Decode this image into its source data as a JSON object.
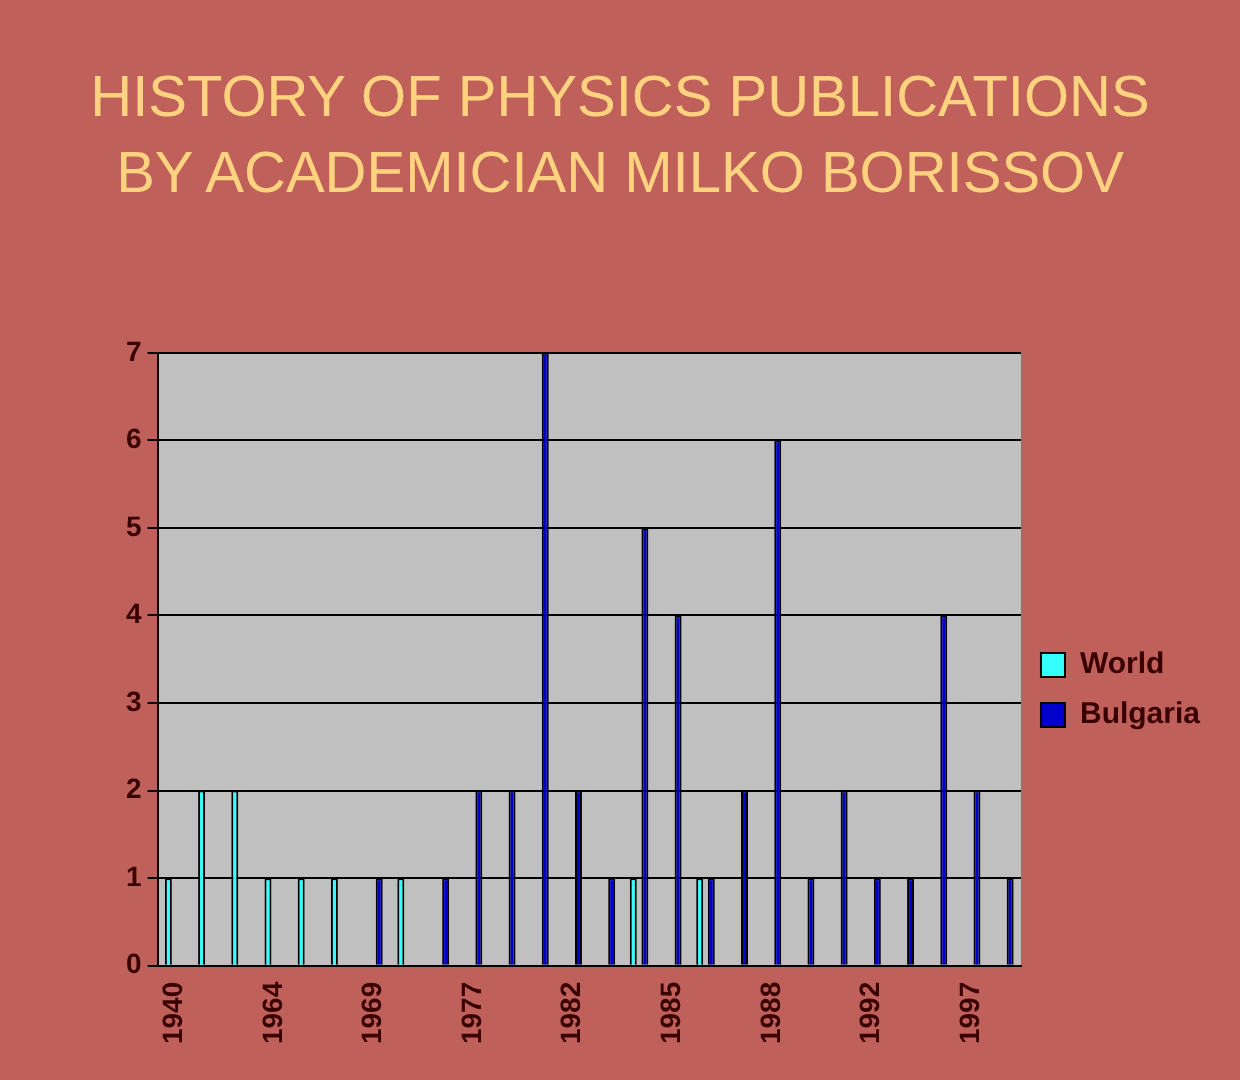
{
  "chart_data": {
    "type": "bar",
    "title": "HISTORY OF PHYSICS PUBLICATIONS BY ACADEMICIAN MILKO BORISSOV",
    "categories": [
      "1940",
      null,
      null,
      "1964",
      null,
      null,
      "1969",
      null,
      null,
      "1977",
      null,
      null,
      "1982",
      null,
      null,
      "1985",
      null,
      null,
      "1988",
      null,
      null,
      "1992",
      null,
      null,
      "1997",
      null
    ],
    "series": [
      {
        "name": "World",
        "color": "#33ffff",
        "values": [
          1,
          2,
          2,
          1,
          1,
          1,
          0,
          1,
          0,
          0,
          0,
          0,
          0,
          0,
          1,
          0,
          1,
          0,
          0,
          0,
          0,
          0,
          0,
          0,
          0,
          0
        ]
      },
      {
        "name": "Bulgaria",
        "color": "#0000cc",
        "values": [
          0,
          0,
          0,
          0,
          0,
          0,
          1,
          0,
          1,
          2,
          2,
          7,
          2,
          1,
          5,
          4,
          1,
          2,
          6,
          1,
          2,
          1,
          1,
          4,
          2,
          1
        ]
      }
    ],
    "ylim": [
      0,
      7
    ],
    "yticks": [
      0,
      1,
      2,
      3,
      4,
      5,
      6,
      7
    ],
    "grid": "y",
    "legend": "right"
  }
}
